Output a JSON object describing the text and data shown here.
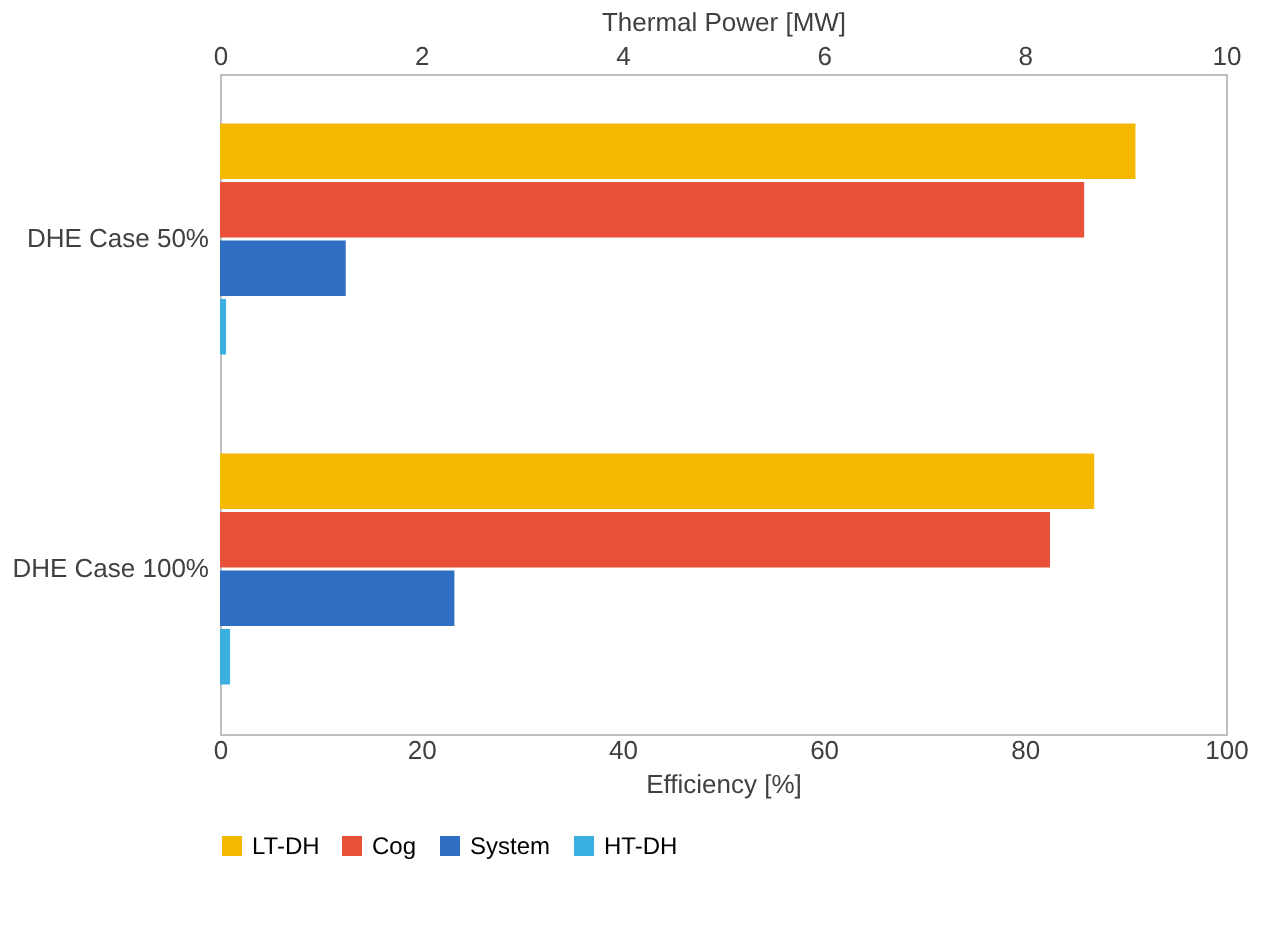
{
  "chart_data": {
    "type": "bar",
    "orientation": "horizontal",
    "xlabel": "Efficiency [%]",
    "x2label": "Thermal Power [MW]",
    "categories": [
      "DHE Case 50%",
      "DHE Case 100%"
    ],
    "xlim": [
      0,
      100
    ],
    "xticks": [
      0,
      20,
      40,
      60,
      80,
      100
    ],
    "x2lim": [
      0,
      10
    ],
    "x2ticks": [
      0,
      2,
      4,
      6,
      8,
      10
    ],
    "legend": "bottom",
    "grid": false,
    "series": [
      {
        "name": "LT-DH",
        "color": "#f5b800",
        "values": [
          9.1,
          8.69
        ],
        "axis": "x2"
      },
      {
        "name": "Cog",
        "color": "#e8503a",
        "values": [
          85.9,
          82.5
        ]
      },
      {
        "name": "System",
        "color": "#2e6fc4",
        "values": [
          12.5,
          23.3
        ]
      },
      {
        "name": "HT-DH",
        "color": "#3ab0e0",
        "values": [
          0.06,
          0.1
        ],
        "axis": "x2"
      }
    ]
  }
}
